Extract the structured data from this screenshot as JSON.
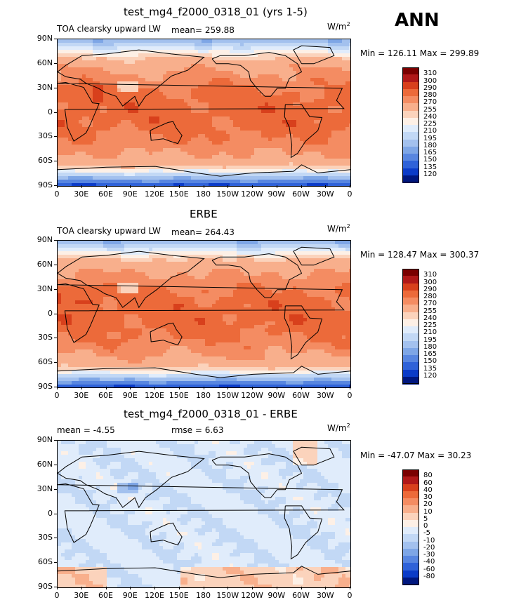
{
  "season": "ANN",
  "units": "W/m",
  "units_sup": "2",
  "chart_data": [
    {
      "type": "heatmap",
      "title": "test_mg4_f2000_0318_01 (yrs 1-5)",
      "variable": "TOA clearsky upward LW",
      "mean_text": "mean= 259.88",
      "minmax_text": "Min = 126.11 Max = 299.89",
      "mean": 259.88,
      "min": 126.11,
      "max": 299.89,
      "x_ticks": [
        "0",
        "30E",
        "60E",
        "90E",
        "120E",
        "150E",
        "180",
        "150W",
        "120W",
        "90W",
        "60W",
        "30W",
        "0"
      ],
      "y_ticks": [
        "90N",
        "60N",
        "30N",
        "0",
        "30S",
        "60S",
        "90S"
      ],
      "colorbar_levels": [
        "310",
        "300",
        "290",
        "280",
        "270",
        "255",
        "240",
        "225",
        "210",
        "195",
        "180",
        "165",
        "150",
        "135",
        "120"
      ],
      "colorbar_colors": [
        "#7a0000",
        "#b01818",
        "#d8401c",
        "#ec6a3a",
        "#f48c62",
        "#f8af8c",
        "#fbd3bc",
        "#fdf0e6",
        "#e0ecfb",
        "#c2d8f5",
        "#a3c1ee",
        "#7ea6e6",
        "#5886e0",
        "#2f62d8",
        "#0b3bc8",
        "#00177f"
      ]
    },
    {
      "type": "heatmap",
      "title": "ERBE",
      "variable": "TOA clearsky upward LW",
      "mean_text": "mean= 264.43",
      "minmax_text": "Min = 128.47 Max = 300.37",
      "mean": 264.43,
      "min": 128.47,
      "max": 300.37,
      "x_ticks": [
        "0",
        "30E",
        "60E",
        "90E",
        "120E",
        "150E",
        "180",
        "150W",
        "120W",
        "90W",
        "60W",
        "30W",
        "0"
      ],
      "y_ticks": [
        "90N",
        "60N",
        "30N",
        "0",
        "30S",
        "60S",
        "90S"
      ],
      "colorbar_levels": [
        "310",
        "300",
        "290",
        "280",
        "270",
        "255",
        "240",
        "225",
        "210",
        "195",
        "180",
        "165",
        "150",
        "135",
        "120"
      ],
      "colorbar_colors": [
        "#7a0000",
        "#b01818",
        "#d8401c",
        "#ec6a3a",
        "#f48c62",
        "#f8af8c",
        "#fbd3bc",
        "#fdf0e6",
        "#e0ecfb",
        "#c2d8f5",
        "#a3c1ee",
        "#7ea6e6",
        "#5886e0",
        "#2f62d8",
        "#0b3bc8",
        "#00177f"
      ]
    },
    {
      "type": "heatmap",
      "title": "test_mg4_f2000_0318_01 - ERBE",
      "variable": "",
      "mean_text": "mean =   -4.55",
      "rmse_text": "rmse =    6.63",
      "minmax_text": "Min = -47.07 Max =  30.23",
      "mean": -4.55,
      "rmse": 6.63,
      "min": -47.07,
      "max": 30.23,
      "x_ticks": [
        "0",
        "30E",
        "60E",
        "90E",
        "120E",
        "150E",
        "180",
        "150W",
        "120W",
        "90W",
        "60W",
        "30W",
        "0"
      ],
      "y_ticks": [
        "90N",
        "60N",
        "30N",
        "0",
        "30S",
        "60S",
        "90S"
      ],
      "colorbar_levels": [
        "80",
        "60",
        "40",
        "30",
        "20",
        "10",
        "5",
        "0",
        "-5",
        "-10",
        "-20",
        "-30",
        "-40",
        "-60",
        "-80"
      ],
      "colorbar_colors": [
        "#7a0000",
        "#b01818",
        "#d8401c",
        "#ec6a3a",
        "#f48c62",
        "#f8af8c",
        "#fbd3bc",
        "#fdf0e6",
        "#e0ecfb",
        "#c2d8f5",
        "#a3c1ee",
        "#7ea6e6",
        "#5886e0",
        "#2f62d8",
        "#0b3bc8",
        "#00177f"
      ]
    }
  ]
}
